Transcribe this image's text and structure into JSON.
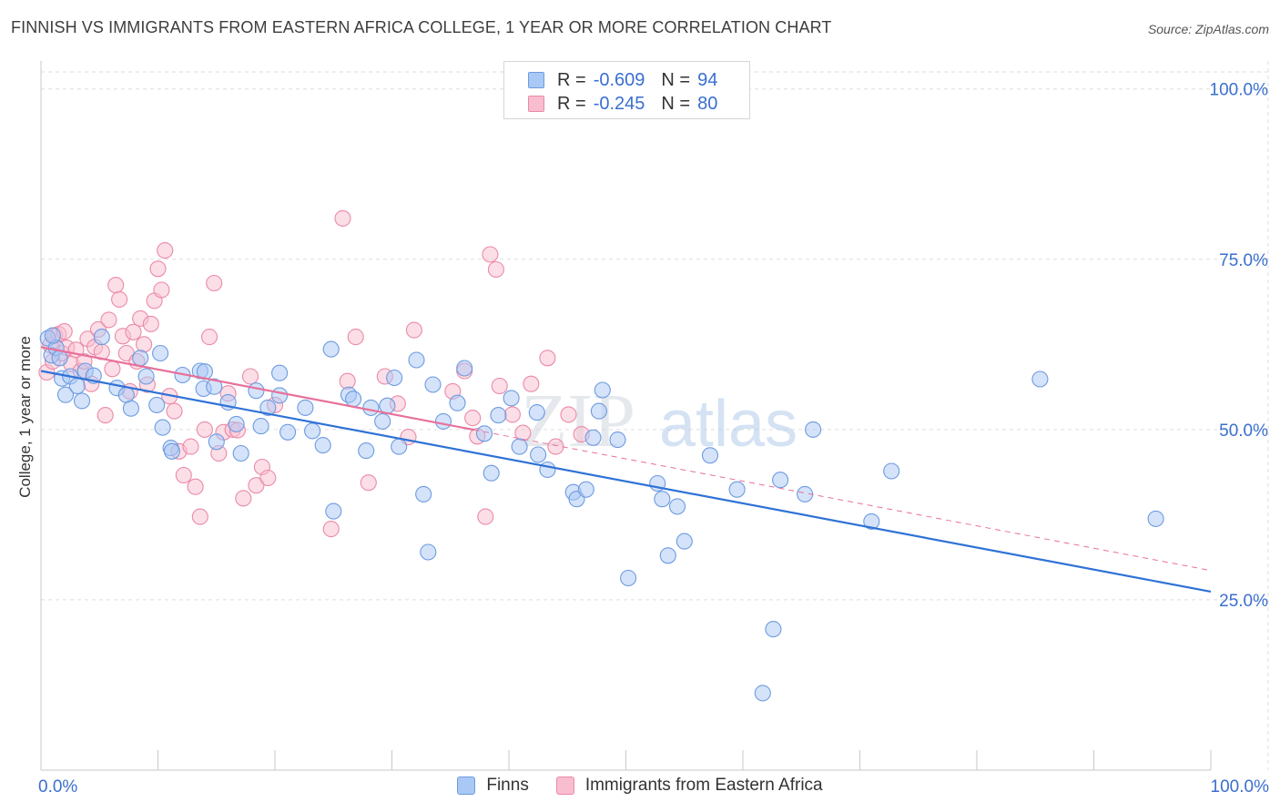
{
  "title": "FINNISH VS IMMIGRANTS FROM EASTERN AFRICA COLLEGE, 1 YEAR OR MORE CORRELATION CHART",
  "source": "Source: ZipAtlas.com",
  "watermark": {
    "zip": "ZIP",
    "atlas": "atlas"
  },
  "legend_top": [
    {
      "label": "R =",
      "r": "-0.609",
      "n_label": "N =",
      "n": "94",
      "fill": "#a9c8f5",
      "stroke": "#6d9be0"
    },
    {
      "label": "R =",
      "r": "-0.245",
      "n_label": "N =",
      "n": "80",
      "fill": "#f9bdd0",
      "stroke": "#ea8aa8"
    }
  ],
  "legend_bottom": [
    {
      "label": "Finns",
      "fill": "#a9c8f5",
      "stroke": "#6d9be0"
    },
    {
      "label": "Immigrants from Eastern Africa",
      "fill": "#f9bdd0",
      "stroke": "#ea8aa8"
    }
  ],
  "colors": {
    "finns_line": "#2f72d6",
    "eafrica_line": "#e8709a",
    "tick_label": "#3a6fcf",
    "grid": "#dedede"
  },
  "chart_data": {
    "type": "scatter",
    "title": "FINNISH VS IMMIGRANTS FROM EASTERN AFRICA COLLEGE, 1 YEAR OR MORE CORRELATION CHART",
    "xlabel": "",
    "ylabel": "College, 1 year or more",
    "xlim": [
      0,
      100
    ],
    "ylim": [
      0,
      102.5
    ],
    "x_tick_labels": [
      {
        "value": 0,
        "label": "0.0%"
      },
      {
        "value": 100,
        "label": "100.0%"
      }
    ],
    "y_tick_labels": [
      {
        "value": 100,
        "label": "100.0%"
      },
      {
        "value": 75,
        "label": "75.0%"
      },
      {
        "value": 50,
        "label": "50.0%"
      },
      {
        "value": 25,
        "label": "25.0%"
      }
    ],
    "x_minor_ticks": [
      0,
      10,
      20,
      30,
      40,
      50,
      60,
      70,
      80,
      90,
      100
    ],
    "series": [
      {
        "name": "Finns",
        "r": -0.609,
        "n": 94,
        "trend": {
          "x": [
            0,
            100
          ],
          "y": [
            58.6,
            26.2
          ]
        },
        "points": [
          [
            0.6,
            63.4
          ],
          [
            0.9,
            60.9
          ],
          [
            1.3,
            62.0
          ],
          [
            1.0,
            63.8
          ],
          [
            1.6,
            60.5
          ],
          [
            1.8,
            57.5
          ],
          [
            2.1,
            55.1
          ],
          [
            2.5,
            57.8
          ],
          [
            3.1,
            56.4
          ],
          [
            3.5,
            54.2
          ],
          [
            3.8,
            58.6
          ],
          [
            4.5,
            57.9
          ],
          [
            5.2,
            63.6
          ],
          [
            6.5,
            56.1
          ],
          [
            7.3,
            55.1
          ],
          [
            7.7,
            53.1
          ],
          [
            8.5,
            60.5
          ],
          [
            9.0,
            57.8
          ],
          [
            9.9,
            53.6
          ],
          [
            10.4,
            50.3
          ],
          [
            10.2,
            61.2
          ],
          [
            11.1,
            47.3
          ],
          [
            11.2,
            46.8
          ],
          [
            12.1,
            58.0
          ],
          [
            13.6,
            58.6
          ],
          [
            13.9,
            56.0
          ],
          [
            14.0,
            58.5
          ],
          [
            14.8,
            56.3
          ],
          [
            15.0,
            48.2
          ],
          [
            16.0,
            54.0
          ],
          [
            16.7,
            50.8
          ],
          [
            17.1,
            46.5
          ],
          [
            18.4,
            55.7
          ],
          [
            18.8,
            50.5
          ],
          [
            19.4,
            53.2
          ],
          [
            20.4,
            58.3
          ],
          [
            20.4,
            55.0
          ],
          [
            21.1,
            49.6
          ],
          [
            22.6,
            53.2
          ],
          [
            23.2,
            49.8
          ],
          [
            24.8,
            61.8
          ],
          [
            24.1,
            47.7
          ],
          [
            25.0,
            38.0
          ],
          [
            26.3,
            55.1
          ],
          [
            26.7,
            54.5
          ],
          [
            28.2,
            53.2
          ],
          [
            27.8,
            46.9
          ],
          [
            29.6,
            53.5
          ],
          [
            29.2,
            51.2
          ],
          [
            30.6,
            47.5
          ],
          [
            30.2,
            57.6
          ],
          [
            32.1,
            60.2
          ],
          [
            32.7,
            40.5
          ],
          [
            33.1,
            32.0
          ],
          [
            33.5,
            56.6
          ],
          [
            34.4,
            51.2
          ],
          [
            35.6,
            53.9
          ],
          [
            36.2,
            59.0
          ],
          [
            37.9,
            49.4
          ],
          [
            38.5,
            43.6
          ],
          [
            39.1,
            52.1
          ],
          [
            40.2,
            54.6
          ],
          [
            40.9,
            47.5
          ],
          [
            42.4,
            52.5
          ],
          [
            42.5,
            46.3
          ],
          [
            43.3,
            44.1
          ],
          [
            45.5,
            40.8
          ],
          [
            45.8,
            39.8
          ],
          [
            46.6,
            41.2
          ],
          [
            47.2,
            48.8
          ],
          [
            47.7,
            52.7
          ],
          [
            48.0,
            55.8
          ],
          [
            49.3,
            48.5
          ],
          [
            50.2,
            28.2
          ],
          [
            52.7,
            42.1
          ],
          [
            53.1,
            39.8
          ],
          [
            53.6,
            31.5
          ],
          [
            54.4,
            38.7
          ],
          [
            55.0,
            33.6
          ],
          [
            57.2,
            46.2
          ],
          [
            59.5,
            41.2
          ],
          [
            62.6,
            20.7
          ],
          [
            63.2,
            42.6
          ],
          [
            65.3,
            40.5
          ],
          [
            66.0,
            50.0
          ],
          [
            71.0,
            36.5
          ],
          [
            72.7,
            43.9
          ],
          [
            85.4,
            57.4
          ],
          [
            95.3,
            36.9
          ],
          [
            61.7,
            11.3
          ]
        ]
      },
      {
        "name": "Immigrants from Eastern Africa",
        "r": -0.245,
        "n": 80,
        "trend": {
          "x": [
            0,
            100
          ],
          "y": [
            62.1,
            29.3
          ]
        },
        "trend_solid_until": 37,
        "points": [
          [
            0.5,
            58.4
          ],
          [
            0.8,
            62.4
          ],
          [
            1.0,
            60.0
          ],
          [
            1.2,
            63.8
          ],
          [
            1.5,
            64.0
          ],
          [
            1.8,
            61.2
          ],
          [
            2.0,
            64.4
          ],
          [
            2.2,
            62.0
          ],
          [
            2.6,
            59.6
          ],
          [
            3.0,
            61.7
          ],
          [
            3.4,
            58.6
          ],
          [
            3.7,
            60.0
          ],
          [
            4.0,
            63.3
          ],
          [
            4.3,
            56.7
          ],
          [
            4.6,
            62.1
          ],
          [
            4.9,
            64.7
          ],
          [
            5.2,
            61.4
          ],
          [
            5.5,
            52.1
          ],
          [
            5.8,
            66.1
          ],
          [
            6.1,
            58.9
          ],
          [
            6.4,
            71.2
          ],
          [
            6.7,
            69.1
          ],
          [
            7.0,
            63.7
          ],
          [
            7.3,
            61.2
          ],
          [
            7.6,
            55.6
          ],
          [
            7.9,
            64.3
          ],
          [
            8.2,
            60.0
          ],
          [
            8.5,
            66.3
          ],
          [
            8.8,
            62.5
          ],
          [
            9.1,
            56.6
          ],
          [
            9.4,
            65.5
          ],
          [
            9.7,
            68.9
          ],
          [
            10.0,
            73.6
          ],
          [
            10.3,
            70.5
          ],
          [
            10.6,
            76.3
          ],
          [
            11.0,
            54.9
          ],
          [
            11.4,
            52.7
          ],
          [
            11.8,
            46.8
          ],
          [
            12.2,
            43.3
          ],
          [
            12.8,
            47.5
          ],
          [
            13.2,
            41.6
          ],
          [
            13.6,
            37.2
          ],
          [
            14.0,
            50.0
          ],
          [
            14.4,
            63.6
          ],
          [
            14.8,
            71.5
          ],
          [
            15.2,
            46.5
          ],
          [
            15.6,
            49.6
          ],
          [
            16.0,
            55.3
          ],
          [
            16.4,
            50.0
          ],
          [
            16.8,
            49.9
          ],
          [
            17.3,
            39.9
          ],
          [
            17.9,
            57.8
          ],
          [
            18.4,
            41.8
          ],
          [
            18.9,
            44.5
          ],
          [
            19.4,
            42.9
          ],
          [
            20.0,
            53.6
          ],
          [
            24.8,
            35.4
          ],
          [
            25.8,
            81.0
          ],
          [
            26.2,
            57.1
          ],
          [
            26.9,
            63.6
          ],
          [
            28.0,
            42.2
          ],
          [
            29.4,
            57.8
          ],
          [
            30.5,
            53.8
          ],
          [
            31.4,
            48.9
          ],
          [
            31.9,
            64.6
          ],
          [
            35.2,
            55.6
          ],
          [
            36.2,
            58.6
          ],
          [
            36.9,
            51.7
          ],
          [
            37.3,
            49.0
          ],
          [
            38.0,
            37.2
          ],
          [
            38.4,
            75.7
          ],
          [
            38.9,
            73.5
          ],
          [
            39.2,
            56.4
          ],
          [
            40.3,
            52.2
          ],
          [
            41.2,
            49.5
          ],
          [
            41.9,
            56.7
          ],
          [
            43.3,
            60.5
          ],
          [
            44.0,
            47.5
          ],
          [
            45.1,
            52.2
          ],
          [
            46.2,
            49.3
          ]
        ]
      }
    ]
  }
}
